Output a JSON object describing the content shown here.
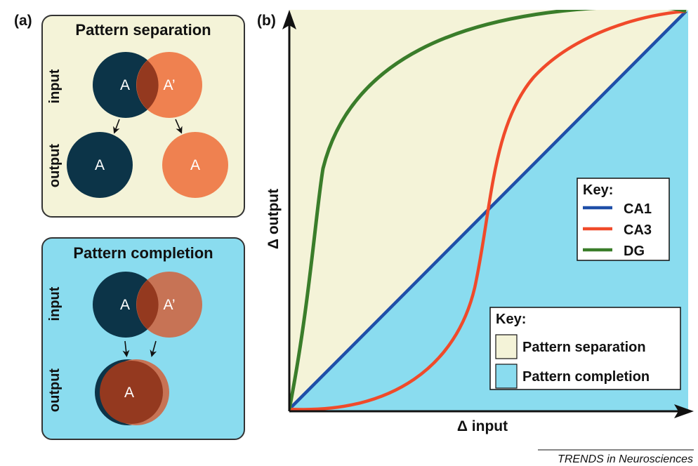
{
  "panel_a": {
    "label": "(a)",
    "separation": {
      "title": "Pattern separation",
      "input_label": "input",
      "output_label": "output",
      "input_circle_left": "A",
      "input_circle_right": "A’",
      "output_circle_left": "A",
      "output_circle_right": "A"
    },
    "completion": {
      "title": "Pattern completion",
      "input_label": "input",
      "output_label": "output",
      "input_circle_left": "A",
      "input_circle_right": "A’",
      "output_circle": "A"
    }
  },
  "panel_b": {
    "label": "(b)",
    "xlabel": "Δ input",
    "ylabel": "Δ output",
    "key_lines": {
      "title": "Key:",
      "items": [
        {
          "name": "CA1",
          "color": "#1f4fa8"
        },
        {
          "name": "CA3",
          "color": "#f04a2a"
        },
        {
          "name": "DG",
          "color": "#3a7d2a"
        }
      ]
    },
    "key_regions": {
      "title": "Key:",
      "items": [
        {
          "name": "Pattern separation",
          "color": "#f4f3d8"
        },
        {
          "name": "Pattern completion",
          "color": "#8adcef"
        }
      ]
    }
  },
  "colors": {
    "dark_teal": "#0c3448",
    "orange": "#ef8150",
    "overlap_brown": "#94391f",
    "separation_bg": "#f4f3d8",
    "completion_bg": "#8adcef"
  },
  "credit": "TRENDS in Neurosciences"
}
